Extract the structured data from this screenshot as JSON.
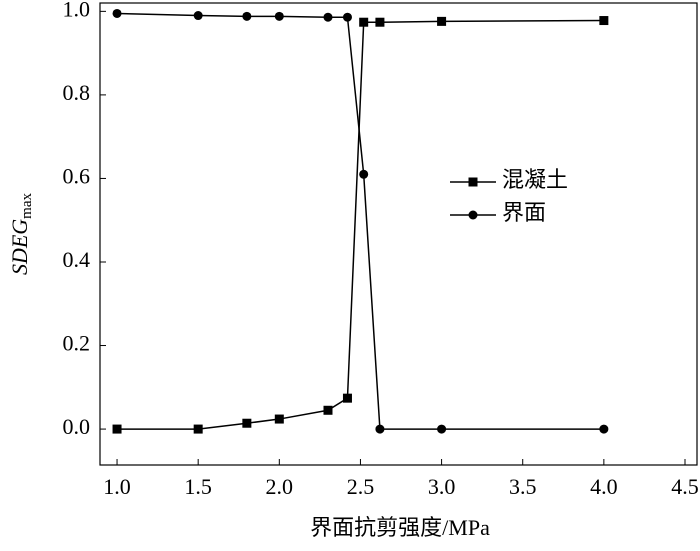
{
  "chart_data": {
    "type": "line",
    "x_label": "界面抗剪强度/MPa",
    "y_label": {
      "main": "SDEG",
      "sub": "max"
    },
    "legend": "right",
    "series": [
      {
        "name": "混凝土",
        "color": "#000000",
        "marker": "square",
        "x": [
          1.0,
          1.5,
          1.8,
          2.0,
          2.3,
          2.42,
          2.52,
          2.62,
          3.0,
          4.0
        ],
        "values": [
          0.0,
          0.0,
          0.014,
          0.024,
          0.045,
          0.074,
          0.974,
          0.974,
          0.976,
          0.978
        ]
      },
      {
        "name": "界面",
        "color": "#000000",
        "marker": "circle",
        "x": [
          1.0,
          1.5,
          1.8,
          2.0,
          2.3,
          2.42,
          2.52,
          2.62,
          3.0,
          4.0
        ],
        "values": [
          0.995,
          0.99,
          0.988,
          0.988,
          0.986,
          0.986,
          0.61,
          0.0,
          0.0,
          0.0
        ]
      }
    ],
    "xlim": [
      0.895,
      4.574
    ],
    "ylim": [
      -0.086,
      1.02
    ],
    "xticks": [
      {
        "value": 1,
        "label": "1.0"
      },
      {
        "value": 1.5,
        "label": "1.5"
      },
      {
        "value": 2,
        "label": "2.0"
      },
      {
        "value": 2.5,
        "label": "2.5"
      },
      {
        "value": 3,
        "label": "3.0"
      },
      {
        "value": 3.5,
        "label": "3.5"
      },
      {
        "value": 4,
        "label": "4.0"
      },
      {
        "value": 4.5,
        "label": "4.5"
      }
    ],
    "yticks": [
      {
        "value": 0,
        "label": "0.0"
      },
      {
        "value": 0.2,
        "label": "0.2"
      },
      {
        "value": 0.4,
        "label": "0.4"
      },
      {
        "value": 0.6,
        "label": "0.6"
      },
      {
        "value": 0.8,
        "label": "0.8"
      },
      {
        "value": 1,
        "label": "1.0"
      }
    ]
  }
}
